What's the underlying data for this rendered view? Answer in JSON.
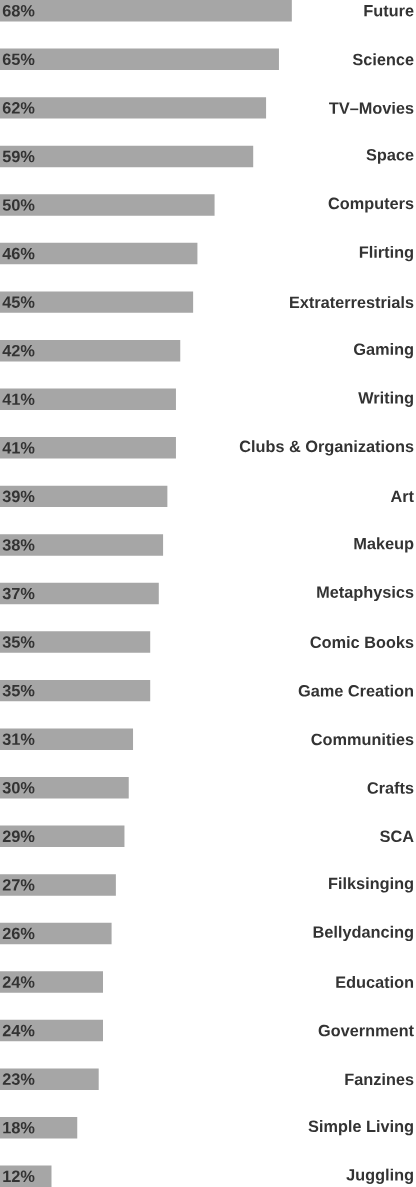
{
  "chart_data": {
    "type": "bar",
    "orientation": "horizontal",
    "color": "#a6a6a6",
    "categories": [
      "Future",
      "Science",
      "TV–Movies",
      "Space",
      "Computers",
      "Flirting",
      "Extraterrestrials",
      "Gaming",
      "Writing",
      "Clubs & Organizations",
      "Art",
      "Makeup",
      "Metaphysics",
      "Comic Books",
      "Game Creation",
      "Communities",
      "Crafts",
      "SCA",
      "Filksinging",
      "Bellydancing",
      "Education",
      "Government",
      "Fanzines",
      "Simple Living",
      "Juggling"
    ],
    "values": [
      68,
      65,
      62,
      59,
      50,
      46,
      45,
      42,
      41,
      41,
      39,
      38,
      37,
      35,
      35,
      31,
      30,
      29,
      27,
      26,
      24,
      24,
      23,
      18,
      12
    ],
    "value_labels": [
      "68%",
      "65%",
      "62%",
      "59%",
      "50%",
      "46%",
      "45%",
      "42%",
      "41%",
      "41%",
      "39%",
      "38%",
      "37%",
      "35%",
      "35%",
      "31%",
      "30%",
      "29%",
      "27%",
      "26%",
      "24%",
      "24%",
      "23%",
      "18%",
      "12%"
    ]
  }
}
